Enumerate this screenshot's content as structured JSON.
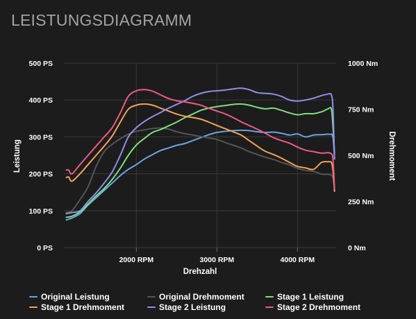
{
  "page": {
    "title": "LEISTUNGSDIAGRAMM"
  },
  "chart_data": {
    "type": "line",
    "xlabel": "Drehzahl",
    "ylabel_left": "Leistung",
    "ylabel_right": "Drehmoment",
    "xlim": [
      1100,
      4480
    ],
    "x_ticks": [
      {
        "value": 2000,
        "label": "2000 RPM"
      },
      {
        "value": 3000,
        "label": "3000 RPM"
      },
      {
        "value": 4000,
        "label": "4000 RPM"
      }
    ],
    "ylim_left": [
      0,
      500
    ],
    "y_ticks_left": [
      {
        "value": 0,
        "label": "0 PS"
      },
      {
        "value": 100,
        "label": "100 PS"
      },
      {
        "value": 200,
        "label": "200 PS"
      },
      {
        "value": 300,
        "label": "300 PS"
      },
      {
        "value": 400,
        "label": "400 PS"
      },
      {
        "value": 500,
        "label": "500 PS"
      }
    ],
    "ylim_right": [
      0,
      1000
    ],
    "y_ticks_right": [
      {
        "value": 0,
        "label": "0 Nm"
      },
      {
        "value": 250,
        "label": "250 Nm"
      },
      {
        "value": 500,
        "label": "500 Nm"
      },
      {
        "value": 750,
        "label": "750 Nm"
      },
      {
        "value": 1000,
        "label": "1000 Nm"
      }
    ],
    "grid": true,
    "legend_position": "bottom",
    "series": [
      {
        "name": "Original Leistung",
        "axis": "left",
        "color": "#69a6e3",
        "points": [
          [
            1130,
            75
          ],
          [
            1200,
            80
          ],
          [
            1300,
            92
          ],
          [
            1400,
            115
          ],
          [
            1500,
            135
          ],
          [
            1600,
            155
          ],
          [
            1700,
            175
          ],
          [
            1800,
            195
          ],
          [
            1900,
            212
          ],
          [
            2000,
            225
          ],
          [
            2100,
            240
          ],
          [
            2200,
            252
          ],
          [
            2300,
            263
          ],
          [
            2400,
            270
          ],
          [
            2500,
            277
          ],
          [
            2600,
            282
          ],
          [
            2700,
            290
          ],
          [
            2800,
            298
          ],
          [
            2900,
            306
          ],
          [
            3000,
            312
          ],
          [
            3100,
            315
          ],
          [
            3200,
            317
          ],
          [
            3300,
            318
          ],
          [
            3400,
            317
          ],
          [
            3500,
            314
          ],
          [
            3600,
            312
          ],
          [
            3700,
            313
          ],
          [
            3800,
            310
          ],
          [
            3900,
            305
          ],
          [
            4000,
            308
          ],
          [
            4100,
            300
          ],
          [
            4200,
            305
          ],
          [
            4300,
            306
          ],
          [
            4400,
            307
          ],
          [
            4440,
            300
          ],
          [
            4460,
            240
          ]
        ]
      },
      {
        "name": "Original Drehmoment",
        "axis": "right",
        "color": "#555555",
        "points": [
          [
            1130,
            190
          ],
          [
            1200,
            200
          ],
          [
            1300,
            260
          ],
          [
            1400,
            330
          ],
          [
            1500,
            440
          ],
          [
            1600,
            520
          ],
          [
            1700,
            560
          ],
          [
            1800,
            590
          ],
          [
            1900,
            615
          ],
          [
            2000,
            630
          ],
          [
            2100,
            638
          ],
          [
            2200,
            645
          ],
          [
            2300,
            648
          ],
          [
            2400,
            642
          ],
          [
            2500,
            628
          ],
          [
            2600,
            618
          ],
          [
            2700,
            610
          ],
          [
            2800,
            602
          ],
          [
            2900,
            594
          ],
          [
            3000,
            586
          ],
          [
            3100,
            570
          ],
          [
            3200,
            555
          ],
          [
            3300,
            540
          ],
          [
            3400,
            520
          ],
          [
            3500,
            505
          ],
          [
            3600,
            490
          ],
          [
            3700,
            478
          ],
          [
            3800,
            462
          ],
          [
            3900,
            448
          ],
          [
            4000,
            430
          ],
          [
            4100,
            418
          ],
          [
            4200,
            413
          ],
          [
            4300,
            398
          ],
          [
            4400,
            396
          ],
          [
            4440,
            380
          ],
          [
            4460,
            320
          ]
        ]
      },
      {
        "name": "Stage 1 Leistung",
        "axis": "left",
        "color": "#7ee07d",
        "points": [
          [
            1130,
            82
          ],
          [
            1200,
            85
          ],
          [
            1300,
            97
          ],
          [
            1400,
            118
          ],
          [
            1500,
            140
          ],
          [
            1600,
            160
          ],
          [
            1700,
            185
          ],
          [
            1800,
            215
          ],
          [
            1900,
            250
          ],
          [
            2000,
            278
          ],
          [
            2100,
            296
          ],
          [
            2200,
            312
          ],
          [
            2300,
            320
          ],
          [
            2400,
            330
          ],
          [
            2500,
            340
          ],
          [
            2600,
            352
          ],
          [
            2700,
            362
          ],
          [
            2800,
            372
          ],
          [
            2900,
            378
          ],
          [
            3000,
            382
          ],
          [
            3100,
            385
          ],
          [
            3200,
            388
          ],
          [
            3300,
            389
          ],
          [
            3400,
            386
          ],
          [
            3500,
            380
          ],
          [
            3600,
            376
          ],
          [
            3700,
            378
          ],
          [
            3800,
            372
          ],
          [
            3900,
            365
          ],
          [
            4000,
            360
          ],
          [
            4100,
            363
          ],
          [
            4200,
            363
          ],
          [
            4300,
            368
          ],
          [
            4380,
            376
          ],
          [
            4420,
            376
          ],
          [
            4440,
            330
          ],
          [
            4460,
            255
          ]
        ]
      },
      {
        "name": "Stage 1 Drehmoment",
        "axis": "right",
        "color": "#f5a25a",
        "points": [
          [
            1130,
            380
          ],
          [
            1160,
            382
          ],
          [
            1200,
            360
          ],
          [
            1300,
            400
          ],
          [
            1400,
            450
          ],
          [
            1500,
            500
          ],
          [
            1600,
            550
          ],
          [
            1700,
            605
          ],
          [
            1800,
            680
          ],
          [
            1900,
            750
          ],
          [
            2000,
            772
          ],
          [
            2100,
            778
          ],
          [
            2200,
            772
          ],
          [
            2300,
            756
          ],
          [
            2400,
            740
          ],
          [
            2500,
            724
          ],
          [
            2600,
            712
          ],
          [
            2700,
            705
          ],
          [
            2800,
            696
          ],
          [
            2900,
            680
          ],
          [
            3000,
            662
          ],
          [
            3100,
            645
          ],
          [
            3200,
            628
          ],
          [
            3300,
            610
          ],
          [
            3400,
            580
          ],
          [
            3500,
            550
          ],
          [
            3600,
            522
          ],
          [
            3700,
            505
          ],
          [
            3800,
            485
          ],
          [
            3900,
            462
          ],
          [
            4000,
            440
          ],
          [
            4100,
            432
          ],
          [
            4200,
            424
          ],
          [
            4300,
            462
          ],
          [
            4380,
            465
          ],
          [
            4420,
            462
          ],
          [
            4440,
            420
          ],
          [
            4460,
            305
          ]
        ]
      },
      {
        "name": "Stage 2 Leistung",
        "axis": "left",
        "color": "#9090ec",
        "points": [
          [
            1130,
            92
          ],
          [
            1200,
            95
          ],
          [
            1300,
            100
          ],
          [
            1400,
            125
          ],
          [
            1500,
            148
          ],
          [
            1600,
            175
          ],
          [
            1700,
            205
          ],
          [
            1800,
            250
          ],
          [
            1900,
            300
          ],
          [
            2000,
            325
          ],
          [
            2100,
            342
          ],
          [
            2200,
            355
          ],
          [
            2300,
            366
          ],
          [
            2400,
            378
          ],
          [
            2500,
            388
          ],
          [
            2600,
            398
          ],
          [
            2700,
            410
          ],
          [
            2800,
            418
          ],
          [
            2900,
            423
          ],
          [
            3000,
            425
          ],
          [
            3100,
            427
          ],
          [
            3200,
            430
          ],
          [
            3300,
            432
          ],
          [
            3400,
            428
          ],
          [
            3500,
            420
          ],
          [
            3600,
            418
          ],
          [
            3700,
            416
          ],
          [
            3800,
            410
          ],
          [
            3900,
            400
          ],
          [
            4000,
            397
          ],
          [
            4100,
            400
          ],
          [
            4200,
            405
          ],
          [
            4300,
            412
          ],
          [
            4380,
            416
          ],
          [
            4420,
            414
          ],
          [
            4440,
            380
          ],
          [
            4460,
            240
          ]
        ]
      },
      {
        "name": "Stage 2 Drehmoment",
        "axis": "right",
        "color": "#ee5b87",
        "points": [
          [
            1130,
            420
          ],
          [
            1160,
            420
          ],
          [
            1200,
            400
          ],
          [
            1300,
            450
          ],
          [
            1400,
            500
          ],
          [
            1500,
            550
          ],
          [
            1600,
            600
          ],
          [
            1700,
            650
          ],
          [
            1800,
            730
          ],
          [
            1900,
            820
          ],
          [
            2000,
            850
          ],
          [
            2100,
            856
          ],
          [
            2200,
            848
          ],
          [
            2300,
            828
          ],
          [
            2400,
            808
          ],
          [
            2500,
            796
          ],
          [
            2600,
            790
          ],
          [
            2700,
            782
          ],
          [
            2800,
            772
          ],
          [
            2900,
            755
          ],
          [
            3000,
            740
          ],
          [
            3100,
            725
          ],
          [
            3200,
            705
          ],
          [
            3300,
            682
          ],
          [
            3400,
            662
          ],
          [
            3500,
            642
          ],
          [
            3600,
            620
          ],
          [
            3700,
            596
          ],
          [
            3800,
            580
          ],
          [
            3900,
            566
          ],
          [
            4000,
            545
          ],
          [
            4100,
            528
          ],
          [
            4200,
            520
          ],
          [
            4300,
            512
          ],
          [
            4380,
            514
          ],
          [
            4420,
            508
          ],
          [
            4440,
            480
          ],
          [
            4460,
            320
          ]
        ]
      }
    ]
  },
  "legend": [
    {
      "label": "Original Leistung",
      "color": "#69a6e3"
    },
    {
      "label": "Original Drehmoment",
      "color": "#555555"
    },
    {
      "label": "Stage 1 Leistung",
      "color": "#7ee07d"
    },
    {
      "label": "Stage 1 Drehmoment",
      "color": "#f5a25a"
    },
    {
      "label": "Stage 2 Leistung",
      "color": "#9090ec"
    },
    {
      "label": "Stage 2 Drehmoment",
      "color": "#ee5b87"
    }
  ]
}
